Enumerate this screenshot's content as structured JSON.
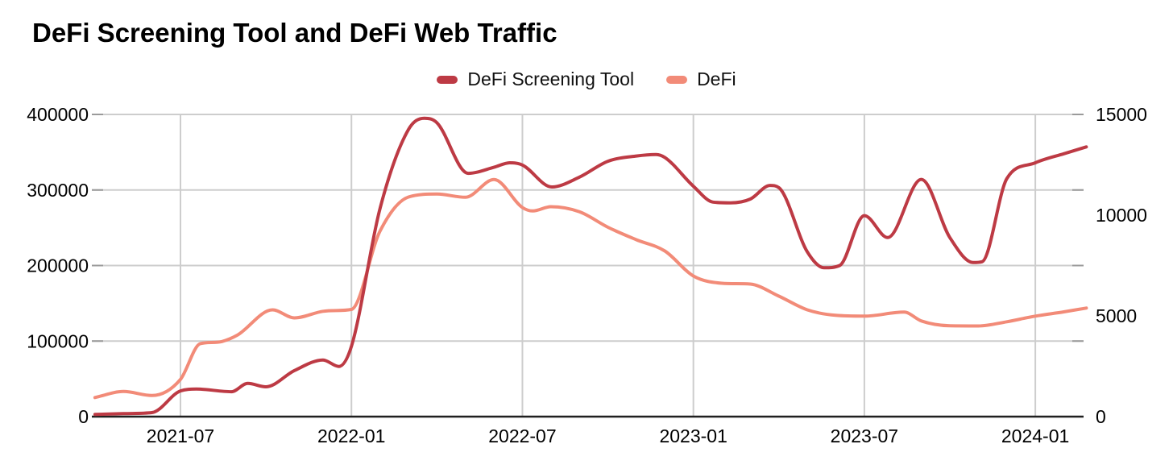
{
  "title": "DeFi Screening Tool and DeFi Web Traffic",
  "legend": [
    {
      "label": "DeFi Screening Tool",
      "color": "#bd3a44"
    },
    {
      "label": "DeFi",
      "color": "#f28b78"
    }
  ],
  "chart_data": {
    "type": "line",
    "title": "DeFi Screening Tool and DeFi Web Traffic",
    "grid": true,
    "legend_position": "top-center",
    "x_axis": {
      "ticks": [
        "2021-07",
        "2022-01",
        "2022-07",
        "2023-01",
        "2023-07",
        "2024-01"
      ],
      "range": [
        "2021-04",
        "2024-03"
      ]
    },
    "left_axis": {
      "ticks": [
        0,
        100000,
        200000,
        300000,
        400000
      ],
      "range": [
        0,
        400000
      ]
    },
    "right_axis": {
      "ticks": [
        0,
        5000,
        10000,
        15000
      ],
      "range": [
        0,
        15000
      ]
    },
    "series": [
      {
        "name": "DeFi",
        "axis": "right",
        "color": "#f28b78",
        "points": [
          [
            "2021-04-01",
            950
          ],
          [
            "2021-05-01",
            1250
          ],
          [
            "2021-06-01",
            1050
          ],
          [
            "2021-07-01",
            1850
          ],
          [
            "2021-07-22",
            3620
          ],
          [
            "2021-08-15",
            3730
          ],
          [
            "2021-09-01",
            4050
          ],
          [
            "2021-10-08",
            5300
          ],
          [
            "2021-11-01",
            4900
          ],
          [
            "2021-12-01",
            5230
          ],
          [
            "2022-01-01",
            5320
          ],
          [
            "2022-02-01",
            9200
          ],
          [
            "2022-03-01",
            10900
          ],
          [
            "2022-04-01",
            11050
          ],
          [
            "2022-05-01",
            10890
          ],
          [
            "2022-06-01",
            11770
          ],
          [
            "2022-07-01",
            10380
          ],
          [
            "2022-07-12",
            10210
          ],
          [
            "2022-08-01",
            10420
          ],
          [
            "2022-09-01",
            10170
          ],
          [
            "2022-10-01",
            9400
          ],
          [
            "2022-11-01",
            8780
          ],
          [
            "2022-12-01",
            8220
          ],
          [
            "2023-01-01",
            6980
          ],
          [
            "2023-02-01",
            6620
          ],
          [
            "2023-03-01",
            6580
          ],
          [
            "2023-04-01",
            5980
          ],
          [
            "2023-05-01",
            5300
          ],
          [
            "2023-06-01",
            5030
          ],
          [
            "2023-07-01",
            4990
          ],
          [
            "2023-08-13",
            5190
          ],
          [
            "2023-09-01",
            4750
          ],
          [
            "2023-10-01",
            4510
          ],
          [
            "2023-11-01",
            4500
          ],
          [
            "2023-12-01",
            4710
          ],
          [
            "2024-01-01",
            4990
          ],
          [
            "2024-02-01",
            5200
          ],
          [
            "2024-02-25",
            5390
          ]
        ]
      },
      {
        "name": "DeFi Screening Tool",
        "axis": "left",
        "color": "#bd3a44",
        "points": [
          [
            "2021-04-01",
            3000
          ],
          [
            "2021-05-01",
            4000
          ],
          [
            "2021-06-01",
            5300
          ],
          [
            "2021-07-01",
            34000
          ],
          [
            "2021-07-18",
            36500
          ],
          [
            "2021-08-25",
            33000
          ],
          [
            "2021-09-12",
            44000
          ],
          [
            "2021-10-01",
            39500
          ],
          [
            "2021-11-01",
            61000
          ],
          [
            "2021-12-01",
            75000
          ],
          [
            "2021-12-18",
            66500
          ],
          [
            "2022-01-01",
            93000
          ],
          [
            "2022-02-01",
            275000
          ],
          [
            "2022-03-01",
            380000
          ],
          [
            "2022-03-18",
            395000
          ],
          [
            "2022-04-01",
            389000
          ],
          [
            "2022-05-04",
            322000
          ],
          [
            "2022-06-01",
            330000
          ],
          [
            "2022-06-18",
            336000
          ],
          [
            "2022-07-01",
            333000
          ],
          [
            "2022-08-02",
            304000
          ],
          [
            "2022-09-01",
            317000
          ],
          [
            "2022-10-01",
            338000
          ],
          [
            "2022-11-01",
            345000
          ],
          [
            "2022-11-22",
            347000
          ],
          [
            "2022-12-01",
            343000
          ],
          [
            "2023-01-01",
            305000
          ],
          [
            "2023-01-22",
            284000
          ],
          [
            "2023-02-10",
            283000
          ],
          [
            "2023-03-01",
            288000
          ],
          [
            "2023-03-22",
            306000
          ],
          [
            "2023-04-01",
            303000
          ],
          [
            "2023-05-01",
            218000
          ],
          [
            "2023-05-19",
            197000
          ],
          [
            "2023-06-05",
            200000
          ],
          [
            "2023-07-01",
            266000
          ],
          [
            "2023-07-26",
            237000
          ],
          [
            "2023-09-01",
            314000
          ],
          [
            "2023-10-01",
            237000
          ],
          [
            "2023-10-26",
            204000
          ],
          [
            "2023-11-05",
            205000
          ],
          [
            "2023-12-01",
            315000
          ],
          [
            "2024-01-01",
            336000
          ],
          [
            "2024-02-01",
            348000
          ],
          [
            "2024-02-25",
            357000
          ]
        ]
      }
    ]
  }
}
